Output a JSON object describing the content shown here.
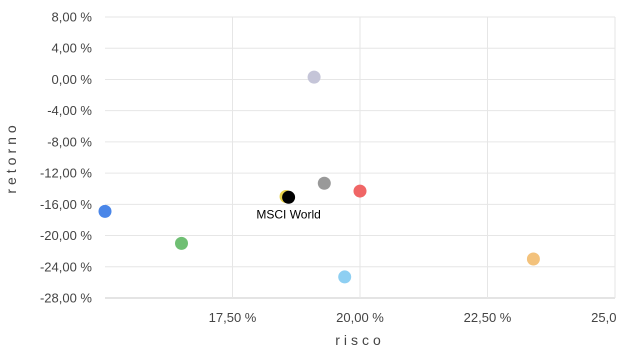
{
  "chart_data": {
    "type": "scatter",
    "xlabel": "risco",
    "ylabel": "retorno",
    "xlim": [
      15.0,
      25.0
    ],
    "ylim": [
      -28,
      8
    ],
    "x_ticks": [
      17.5,
      20.0,
      22.5,
      25.0
    ],
    "x_tick_labels": [
      "17,50 %",
      "20,00 %",
      "22,50 %",
      "25,00 %"
    ],
    "y_ticks": [
      8,
      4,
      0,
      -4,
      -8,
      -12,
      -16,
      -20,
      -24,
      -28
    ],
    "y_tick_labels": [
      "8,00 %",
      "4,00 %",
      "0,00 %",
      "-4,00 %",
      "-8,00 %",
      "-12,00 %",
      "-16,00 %",
      "-20,00 %",
      "-24,00 %",
      "-28,00 %"
    ],
    "grid": true,
    "legend": "none",
    "annotation": "MSCI World",
    "points": [
      {
        "x": 15.0,
        "y": -16.9,
        "color": "#4a86e8"
      },
      {
        "x": 16.5,
        "y": -21.0,
        "color": "#6fbf73"
      },
      {
        "x": 18.55,
        "y": -15.0,
        "color": "#e8d24a"
      },
      {
        "x": 18.6,
        "y": -15.1,
        "color": "#000000",
        "label": "MSCI World"
      },
      {
        "x": 19.1,
        "y": 0.3,
        "color": "#c5c5d8"
      },
      {
        "x": 19.3,
        "y": -13.3,
        "color": "#999999"
      },
      {
        "x": 19.7,
        "y": -25.3,
        "color": "#8ecff2"
      },
      {
        "x": 20.0,
        "y": -14.3,
        "color": "#f06666"
      },
      {
        "x": 23.4,
        "y": -23.0,
        "color": "#f3c27c"
      }
    ]
  }
}
